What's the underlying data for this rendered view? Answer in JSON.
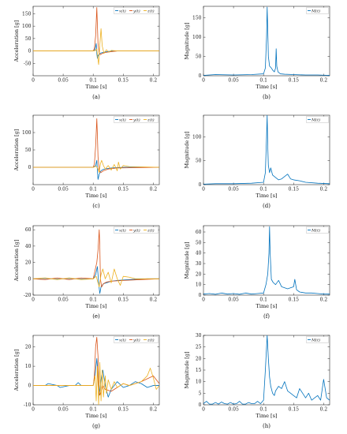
{
  "colors": {
    "x": "#0072BD",
    "y": "#D95319",
    "z": "#EDB120",
    "M": "#0072BD"
  },
  "chart_data": [
    {
      "type": "line",
      "xlabel": "Time [s]",
      "ylabel": "Acceleration [g]",
      "caption": "(a)",
      "xlim": [
        0,
        0.21
      ],
      "ylim": [
        -100,
        180
      ],
      "xticks": [
        0,
        0.05,
        0.1,
        0.15,
        0.2
      ],
      "yticks": [
        -50,
        0,
        50,
        100,
        150
      ],
      "legend": [
        "x(t)",
        "y(t)",
        "z(t)"
      ],
      "series": [
        {
          "name": "x(t)",
          "color": "#0072BD",
          "x": [
            0,
            0.1,
            0.103,
            0.105,
            0.106,
            0.107,
            0.108,
            0.11,
            0.113,
            0.116,
            0.12,
            0.125,
            0.13,
            0.14,
            0.15,
            0.21
          ],
          "y": [
            0,
            0,
            5,
            30,
            -10,
            -30,
            -20,
            -12,
            -8,
            -6,
            -4,
            -2,
            -1,
            0,
            0,
            0
          ]
        },
        {
          "name": "y(t)",
          "color": "#D95319",
          "x": [
            0,
            0.1,
            0.102,
            0.104,
            0.106,
            0.107,
            0.108,
            0.11,
            0.112,
            0.115,
            0.12,
            0.13,
            0.14,
            0.21
          ],
          "y": [
            0,
            0,
            10,
            60,
            175,
            100,
            30,
            -10,
            -15,
            -10,
            -6,
            -3,
            0,
            0
          ]
        },
        {
          "name": "z(t)",
          "color": "#EDB120",
          "x": [
            0,
            0.1,
            0.104,
            0.106,
            0.107,
            0.109,
            0.111,
            0.113,
            0.115,
            0.118,
            0.122,
            0.126,
            0.13,
            0.14,
            0.21
          ],
          "y": [
            0,
            0,
            2,
            8,
            -15,
            -55,
            25,
            90,
            20,
            -10,
            5,
            -5,
            2,
            0,
            0
          ]
        }
      ]
    },
    {
      "type": "line",
      "xlabel": "Time [s]",
      "ylabel": "Magnitude [g]",
      "caption": "(b)",
      "xlim": [
        0,
        0.21
      ],
      "ylim": [
        0,
        180
      ],
      "xticks": [
        0,
        0.05,
        0.1,
        0.15,
        0.2
      ],
      "yticks": [
        0,
        50,
        100,
        150
      ],
      "legend": [
        "M(t)"
      ],
      "series": [
        {
          "name": "M(t)",
          "color": "#0072BD",
          "x": [
            0,
            0.02,
            0.05,
            0.08,
            0.1,
            0.103,
            0.105,
            0.106,
            0.107,
            0.108,
            0.11,
            0.113,
            0.115,
            0.118,
            0.12,
            0.121,
            0.122,
            0.124,
            0.128,
            0.135,
            0.15,
            0.17,
            0.19,
            0.21
          ],
          "y": [
            1,
            3,
            2,
            3,
            5,
            20,
            100,
            178,
            120,
            50,
            25,
            20,
            15,
            10,
            20,
            70,
            25,
            10,
            5,
            4,
            3,
            2,
            2,
            1
          ]
        }
      ]
    },
    {
      "type": "line",
      "xlabel": "Time [s]",
      "ylabel": "Acceleration [g]",
      "caption": "(c)",
      "xlim": [
        0,
        0.21
      ],
      "ylim": [
        -50,
        150
      ],
      "xticks": [
        0,
        0.05,
        0.1,
        0.15,
        0.2
      ],
      "yticks": [
        0,
        50,
        100
      ],
      "legend": [
        "x(t)",
        "y(t)",
        "z(t)"
      ],
      "series": [
        {
          "name": "x(t)",
          "color": "#0072BD",
          "x": [
            0,
            0.1,
            0.104,
            0.106,
            0.107,
            0.108,
            0.11,
            0.113,
            0.117,
            0.122,
            0.13,
            0.14,
            0.15,
            0.21
          ],
          "y": [
            0,
            0,
            5,
            20,
            -10,
            -35,
            -20,
            -10,
            -6,
            -4,
            -2,
            -1,
            0,
            0
          ]
        },
        {
          "name": "y(t)",
          "color": "#D95319",
          "x": [
            0,
            0.1,
            0.102,
            0.104,
            0.106,
            0.107,
            0.108,
            0.11,
            0.113,
            0.117,
            0.125,
            0.14,
            0.21
          ],
          "y": [
            0,
            0,
            10,
            60,
            140,
            90,
            30,
            -10,
            -15,
            -10,
            -5,
            -2,
            0
          ]
        },
        {
          "name": "z(t)",
          "color": "#EDB120",
          "x": [
            0,
            0.1,
            0.105,
            0.108,
            0.11,
            0.112,
            0.114,
            0.117,
            0.12,
            0.125,
            0.13,
            0.135,
            0.14,
            0.142,
            0.145,
            0.15,
            0.16,
            0.21
          ],
          "y": [
            0,
            0,
            3,
            -5,
            -15,
            10,
            20,
            5,
            -5,
            5,
            -8,
            8,
            -10,
            15,
            -5,
            5,
            2,
            0
          ]
        }
      ]
    },
    {
      "type": "line",
      "xlabel": "Time [s]",
      "ylabel": "Magnitude [g]",
      "caption": "(d)",
      "xlim": [
        0,
        0.21
      ],
      "ylim": [
        0,
        145
      ],
      "xticks": [
        0,
        0.05,
        0.1,
        0.15,
        0.2
      ],
      "yticks": [
        0,
        50,
        100
      ],
      "legend": [
        "M(t)"
      ],
      "series": [
        {
          "name": "M(t)",
          "color": "#0072BD",
          "x": [
            0,
            0.02,
            0.05,
            0.08,
            0.1,
            0.103,
            0.105,
            0.106,
            0.107,
            0.108,
            0.11,
            0.112,
            0.115,
            0.12,
            0.125,
            0.13,
            0.14,
            0.145,
            0.15,
            0.16,
            0.17,
            0.19,
            0.21
          ],
          "y": [
            1,
            2,
            2,
            3,
            5,
            25,
            100,
            145,
            80,
            40,
            25,
            35,
            20,
            15,
            10,
            12,
            22,
            12,
            10,
            8,
            5,
            3,
            2
          ]
        }
      ]
    },
    {
      "type": "line",
      "xlabel": "Time [s]",
      "ylabel": "Acceleration [g]",
      "caption": "(e)",
      "xlim": [
        0,
        0.21
      ],
      "ylim": [
        -20,
        65
      ],
      "xticks": [
        0,
        0.05,
        0.1,
        0.15,
        0.2
      ],
      "yticks": [
        -20,
        0,
        20,
        40,
        60
      ],
      "legend": [
        "x(t)",
        "y(t)",
        "z(t)"
      ],
      "series": [
        {
          "name": "x(t)",
          "color": "#0072BD",
          "x": [
            0,
            0.02,
            0.04,
            0.06,
            0.08,
            0.1,
            0.104,
            0.107,
            0.109,
            0.111,
            0.113,
            0.117,
            0.122,
            0.13,
            0.14,
            0.16,
            0.19,
            0.21
          ],
          "y": [
            0,
            0.5,
            -0.5,
            0.5,
            -0.5,
            0,
            5,
            15,
            -5,
            -18,
            -10,
            -6,
            -5,
            -3,
            -2,
            -1,
            0,
            0
          ]
        },
        {
          "name": "y(t)",
          "color": "#D95319",
          "x": [
            0,
            0.02,
            0.04,
            0.06,
            0.08,
            0.1,
            0.103,
            0.106,
            0.108,
            0.11,
            0.111,
            0.112,
            0.114,
            0.117,
            0.122,
            0.13,
            0.15,
            0.18,
            0.21
          ],
          "y": [
            0,
            -1,
            1,
            -1,
            1,
            0,
            10,
            20,
            35,
            60,
            40,
            0,
            -10,
            -6,
            -4,
            -3,
            -2,
            -1,
            0
          ]
        },
        {
          "name": "z(t)",
          "color": "#EDB120",
          "x": [
            0,
            0.02,
            0.04,
            0.06,
            0.08,
            0.1,
            0.105,
            0.108,
            0.11,
            0.113,
            0.116,
            0.12,
            0.125,
            0.13,
            0.135,
            0.14,
            0.145,
            0.15,
            0.16,
            0.17,
            0.21
          ],
          "y": [
            0,
            1,
            -1,
            1,
            -1,
            0,
            3,
            -5,
            -10,
            5,
            12,
            0,
            8,
            -5,
            12,
            0,
            -8,
            3,
            2,
            0,
            0
          ]
        }
      ]
    },
    {
      "type": "line",
      "xlabel": "Time [s]",
      "ylabel": "Magnitude [g]",
      "caption": "(f)",
      "xlim": [
        0,
        0.21
      ],
      "ylim": [
        0,
        66
      ],
      "xticks": [
        0,
        0.05,
        0.1,
        0.15,
        0.2
      ],
      "yticks": [
        0,
        10,
        20,
        30,
        40,
        50,
        60
      ],
      "legend": [
        "M(t)"
      ],
      "series": [
        {
          "name": "M(t)",
          "color": "#0072BD",
          "x": [
            0,
            0.01,
            0.02,
            0.03,
            0.04,
            0.05,
            0.06,
            0.07,
            0.08,
            0.09,
            0.1,
            0.104,
            0.107,
            0.109,
            0.11,
            0.111,
            0.113,
            0.116,
            0.12,
            0.125,
            0.13,
            0.14,
            0.15,
            0.152,
            0.155,
            0.16,
            0.17,
            0.18,
            0.19,
            0.2,
            0.21
          ],
          "y": [
            1,
            1.5,
            0.8,
            2,
            1,
            1.5,
            0.8,
            2,
            1,
            1.5,
            2,
            10,
            20,
            40,
            65,
            40,
            15,
            12,
            10,
            14,
            8,
            6,
            8,
            15,
            5,
            3,
            2,
            2,
            1.5,
            1,
            1
          ]
        }
      ]
    },
    {
      "type": "line",
      "xlabel": "Time [s]",
      "ylabel": "Acceleration [g]",
      "caption": "(g)",
      "xlim": [
        0,
        0.21
      ],
      "ylim": [
        -10,
        26
      ],
      "xticks": [
        0,
        0.05,
        0.1,
        0.15,
        0.2
      ],
      "yticks": [
        -10,
        0,
        10,
        20
      ],
      "legend": [
        "x(t)",
        "y(t)",
        "z(t)"
      ],
      "series": [
        {
          "name": "x(t)",
          "color": "#0072BD",
          "x": [
            0,
            0.02,
            0.025,
            0.04,
            0.045,
            0.06,
            0.07,
            0.075,
            0.08,
            0.1,
            0.103,
            0.106,
            0.108,
            0.11,
            0.113,
            0.116,
            0.12,
            0.125,
            0.13,
            0.14,
            0.15,
            0.16,
            0.17,
            0.18,
            0.19,
            0.2,
            0.21
          ],
          "y": [
            0,
            0,
            1,
            0,
            -1,
            0,
            0,
            1.5,
            0,
            0,
            5,
            14,
            5,
            -5,
            3,
            8,
            0,
            -6,
            -2,
            2,
            -1,
            0,
            2,
            1,
            -1,
            0,
            0
          ]
        },
        {
          "name": "y(t)",
          "color": "#D95319",
          "x": [
            0,
            0.02,
            0.04,
            0.06,
            0.08,
            0.1,
            0.102,
            0.104,
            0.106,
            0.108,
            0.109,
            0.111,
            0.113,
            0.116,
            0.12,
            0.13,
            0.14,
            0.15,
            0.16,
            0.18,
            0.2,
            0.21
          ],
          "y": [
            0,
            0,
            0,
            0,
            0,
            0,
            5,
            20,
            25,
            15,
            0,
            -5,
            -3,
            0,
            -2,
            -3,
            -1,
            1,
            0,
            2,
            5,
            1
          ]
        },
        {
          "name": "z(t)",
          "color": "#EDB120",
          "x": [
            0,
            0.02,
            0.04,
            0.06,
            0.08,
            0.1,
            0.103,
            0.105,
            0.107,
            0.109,
            0.111,
            0.113,
            0.115,
            0.117,
            0.12,
            0.122,
            0.125,
            0.13,
            0.135,
            0.14,
            0.15,
            0.16,
            0.17,
            0.18,
            0.19,
            0.195,
            0.2,
            0.205,
            0.21
          ],
          "y": [
            0,
            0,
            0,
            0,
            0,
            0,
            5,
            -8,
            10,
            -10,
            12,
            -8,
            8,
            -6,
            5,
            -4,
            3,
            -2,
            2,
            -1,
            1,
            0,
            1,
            2,
            5,
            9,
            4,
            -2,
            0
          ]
        }
      ]
    },
    {
      "type": "line",
      "xlabel": "Time [s]",
      "ylabel": "Magnitude [g]",
      "caption": "(h)",
      "xlim": [
        0,
        0.21
      ],
      "ylim": [
        0,
        30
      ],
      "xticks": [
        0,
        0.05,
        0.1,
        0.15,
        0.2
      ],
      "yticks": [
        0,
        5,
        10,
        15,
        20,
        25,
        30
      ],
      "legend": [
        "M(t)"
      ],
      "series": [
        {
          "name": "M(t)",
          "color": "#0072BD",
          "x": [
            0,
            0.005,
            0.01,
            0.015,
            0.02,
            0.025,
            0.03,
            0.035,
            0.04,
            0.045,
            0.05,
            0.055,
            0.06,
            0.065,
            0.07,
            0.075,
            0.08,
            0.085,
            0.09,
            0.095,
            0.1,
            0.103,
            0.106,
            0.108,
            0.11,
            0.112,
            0.115,
            0.118,
            0.12,
            0.125,
            0.13,
            0.135,
            0.14,
            0.145,
            0.15,
            0.155,
            0.16,
            0.165,
            0.17,
            0.175,
            0.18,
            0.185,
            0.19,
            0.195,
            0.2,
            0.205,
            0.21
          ],
          "y": [
            0.5,
            1.5,
            0.3,
            0.3,
            1,
            0.3,
            1.2,
            0.5,
            0.3,
            1,
            0.3,
            0.5,
            1.5,
            0.3,
            0.3,
            1,
            0.5,
            0.5,
            1.5,
            0.5,
            2,
            15,
            30,
            20,
            12,
            8,
            5,
            4,
            6,
            8,
            7,
            10,
            6,
            5,
            4,
            3,
            7,
            5,
            3,
            5,
            2,
            3,
            4,
            2,
            11,
            3,
            2
          ]
        }
      ]
    }
  ]
}
